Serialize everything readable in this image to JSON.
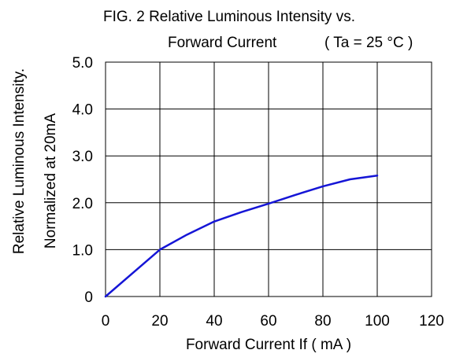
{
  "chart_data": {
    "type": "line",
    "title_line1": "FIG. 2   Relative Luminous Intensity vs.",
    "title_line2": "Forward Current",
    "condition": "( Ta = 25 °C )",
    "xlabel": "Forward Current If ( mA )",
    "ylabel_line1": "Relative Luminous Intensity.",
    "ylabel_line2": "Normalized at 20mA",
    "xlim": [
      0,
      120
    ],
    "ylim": [
      0,
      5.0
    ],
    "grid": true,
    "x_ticks": [
      "0",
      "20",
      "40",
      "60",
      "80",
      "100",
      "120"
    ],
    "y_ticks": [
      "0",
      "1.0",
      "2.0",
      "3.0",
      "4.0",
      "5.0"
    ],
    "series": [
      {
        "color": "#1515d6",
        "x": [
          0,
          10,
          20,
          30,
          40,
          50,
          60,
          70,
          80,
          90,
          100
        ],
        "y": [
          0,
          0.5,
          1.0,
          1.32,
          1.6,
          1.8,
          1.98,
          2.17,
          2.35,
          2.5,
          2.58
        ]
      }
    ]
  }
}
